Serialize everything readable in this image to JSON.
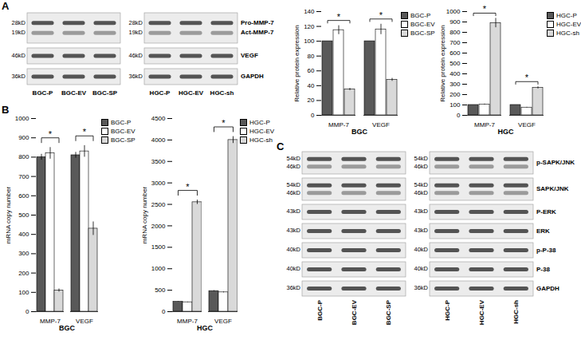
{
  "chart_data": [
    {
      "type": "bar",
      "xlabel": "BGC",
      "ylabel": "Relative protein expression",
      "categories": [
        "MMP-7",
        "VEGF"
      ],
      "series": [
        {
          "name": "BGC-P",
          "color": "#595959",
          "values": [
            100,
            100
          ],
          "errors": [
            0,
            0
          ]
        },
        {
          "name": "BGC-EV",
          "color": "#ffffff",
          "values": [
            115,
            116
          ],
          "errors": [
            6,
            7
          ]
        },
        {
          "name": "BGC-SP",
          "color": "#d9d9d9",
          "values": [
            35,
            48
          ],
          "errors": [
            1.5,
            2
          ]
        }
      ],
      "ylim": [
        0,
        140
      ],
      "yticks": [
        0,
        20,
        40,
        60,
        80,
        100,
        120,
        140
      ],
      "legend": "right",
      "significance": [
        {
          "category": "MMP-7",
          "from": "BGC-P",
          "to": "BGC-SP",
          "label": "*"
        },
        {
          "category": "VEGF",
          "from": "BGC-P",
          "to": "BGC-SP",
          "label": "*"
        }
      ]
    },
    {
      "type": "bar",
      "xlabel": "HGC",
      "ylabel": "Relative protein expression",
      "categories": [
        "MMP-7",
        "VEGF"
      ],
      "series": [
        {
          "name": "HGC-P",
          "color": "#595959",
          "values": [
            100,
            100
          ],
          "errors": [
            0,
            0
          ]
        },
        {
          "name": "HGC-EV",
          "color": "#ffffff",
          "values": [
            105,
            75
          ],
          "errors": [
            4,
            3
          ]
        },
        {
          "name": "HGC-sh",
          "color": "#d9d9d9",
          "values": [
            890,
            265
          ],
          "errors": [
            45,
            10
          ]
        }
      ],
      "ylim": [
        0,
        1000
      ],
      "yticks": [
        0,
        100,
        200,
        300,
        400,
        500,
        600,
        700,
        800,
        900,
        1000
      ],
      "legend": "right",
      "significance": [
        {
          "category": "MMP-7",
          "from": "HGC-P",
          "to": "HGC-sh",
          "label": "*"
        },
        {
          "category": "VEGF",
          "from": "HGC-P",
          "to": "HGC-sh",
          "label": "*"
        }
      ]
    },
    {
      "type": "bar",
      "panel": "B",
      "xlabel": "BGC",
      "ylabel": "mRNA copy number",
      "categories": [
        "MMP-7",
        "VEGF"
      ],
      "series": [
        {
          "name": "BGC-P",
          "color": "#595959",
          "values": [
            800,
            810
          ],
          "errors": [
            15,
            15
          ]
        },
        {
          "name": "BGC-EV",
          "color": "#ffffff",
          "values": [
            820,
            830
          ],
          "errors": [
            30,
            30
          ]
        },
        {
          "name": "BGC-SP",
          "color": "#d9d9d9",
          "values": [
            110,
            430
          ],
          "errors": [
            8,
            35
          ]
        }
      ],
      "ylim": [
        0,
        1000
      ],
      "yticks": [
        0,
        100,
        200,
        300,
        400,
        500,
        600,
        700,
        800,
        900,
        1000
      ],
      "legend": "right",
      "significance": [
        {
          "category": "MMP-7",
          "from": "BGC-P",
          "to": "BGC-SP",
          "label": "*"
        },
        {
          "category": "VEGF",
          "from": "BGC-P",
          "to": "BGC-SP",
          "label": "*"
        }
      ]
    },
    {
      "type": "bar",
      "xlabel": "HGC",
      "ylabel": "mRNA copy number",
      "categories": [
        "MMP-7",
        "VEGF"
      ],
      "series": [
        {
          "name": "HGC-P",
          "color": "#595959",
          "values": [
            230,
            480
          ],
          "errors": [
            5,
            10
          ]
        },
        {
          "name": "HGC-EV",
          "color": "#ffffff",
          "values": [
            220,
            450
          ],
          "errors": [
            5,
            10
          ]
        },
        {
          "name": "HGC-sh",
          "color": "#d9d9d9",
          "values": [
            2550,
            4000
          ],
          "errors": [
            50,
            80
          ]
        }
      ],
      "ylim": [
        0,
        4500
      ],
      "yticks": [
        0,
        500,
        1000,
        1500,
        2000,
        2500,
        3000,
        3500,
        4000,
        4500
      ],
      "legend": "right",
      "significance": [
        {
          "category": "MMP-7",
          "from": "HGC-P",
          "to": "HGC-sh",
          "label": "*"
        },
        {
          "category": "VEGF",
          "from": "HGC-P",
          "to": "HGC-sh",
          "label": "*"
        }
      ]
    }
  ],
  "blots": [
    {
      "panel": "A",
      "orientation": "horizontal",
      "groups": [
        [
          "BGC-P",
          "BGC-EV",
          "BGC-SP"
        ],
        [
          "HGC-P",
          "HGC-EV",
          "HGC-sh"
        ]
      ],
      "strips": [
        {
          "mw": [
            "28kD",
            "19kD"
          ],
          "labels": [
            "Pro-MMP-7",
            "Act-MMP-7"
          ]
        },
        {
          "mw": [
            "46kD"
          ],
          "labels": [
            "VEGF"
          ]
        },
        {
          "mw": [
            "36kD"
          ],
          "labels": [
            "GAPDH"
          ]
        }
      ]
    },
    {
      "panel": "C",
      "orientation": "vertical",
      "groups": [
        [
          "BGC-P",
          "BGC-EV",
          "BGC-SP"
        ],
        [
          "HGC-P",
          "HGC-EV",
          "HGC-sh"
        ]
      ],
      "strips": [
        {
          "mw": [
            "54kD",
            "46kD"
          ],
          "labels": [
            "p-SAPK/JNK"
          ]
        },
        {
          "mw": [
            "54kD",
            "46kD"
          ],
          "labels": [
            "SAPK/JNK"
          ]
        },
        {
          "mw": [
            "43kD"
          ],
          "labels": [
            "P-ERK"
          ]
        },
        {
          "mw": [
            "43kD"
          ],
          "labels": [
            "ERK"
          ]
        },
        {
          "mw": [
            "40kD"
          ],
          "labels": [
            "p-P-38"
          ]
        },
        {
          "mw": [
            "40kD"
          ],
          "labels": [
            "P-38"
          ]
        },
        {
          "mw": [
            "36kD"
          ],
          "labels": [
            "GAPDH"
          ]
        }
      ]
    }
  ]
}
